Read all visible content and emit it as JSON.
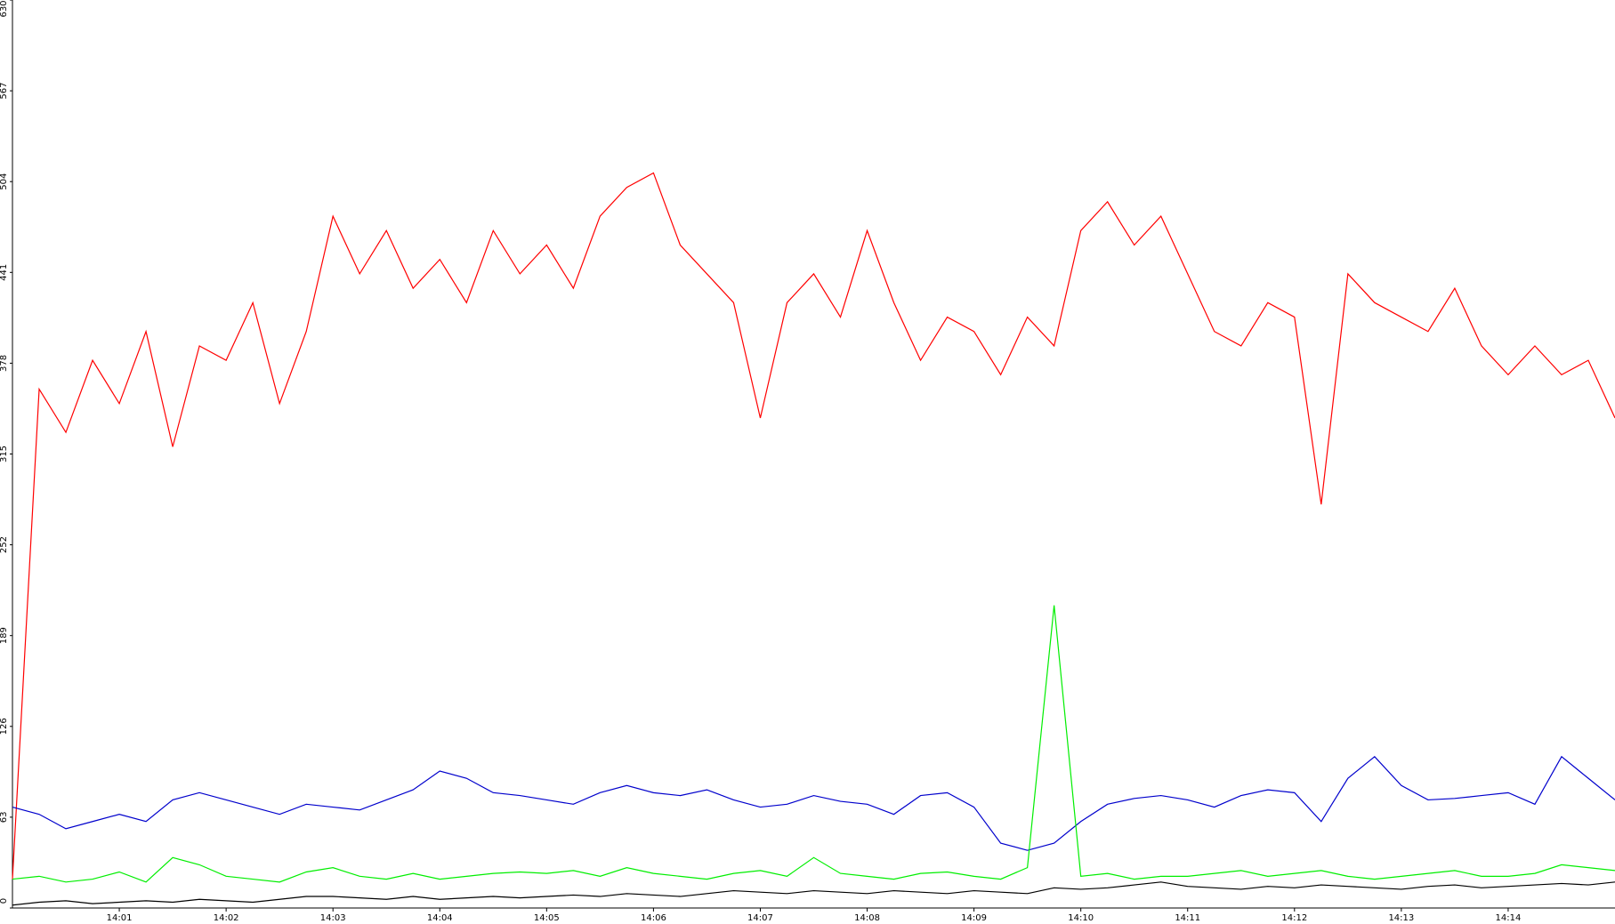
{
  "chart_data": {
    "type": "line",
    "categories": [
      null,
      null,
      null,
      null,
      "14:01",
      null,
      null,
      null,
      "14:02",
      null,
      null,
      null,
      "14:03",
      null,
      null,
      null,
      "14:04",
      null,
      null,
      null,
      "14:05",
      null,
      null,
      null,
      "14:06",
      null,
      null,
      null,
      "14:07",
      null,
      null,
      null,
      "14:08",
      null,
      null,
      null,
      "14:09",
      null,
      null,
      null,
      "14:10",
      null,
      null,
      null,
      "14:11",
      null,
      null,
      null,
      "14:12",
      null,
      null,
      null,
      "14:13",
      null,
      null,
      null,
      "14:14",
      null,
      null,
      null,
      null
    ],
    "series": [
      {
        "color": "#ff0000",
        "values": [
          20,
          360,
          330,
          380,
          350,
          400,
          320,
          390,
          380,
          420,
          350,
          400,
          480,
          440,
          470,
          430,
          450,
          420,
          470,
          440,
          460,
          430,
          480,
          500,
          510,
          460,
          440,
          420,
          340,
          420,
          440,
          410,
          470,
          420,
          380,
          410,
          400,
          370,
          410,
          390,
          470,
          490,
          460,
          480,
          440,
          400,
          390,
          420,
          410,
          280,
          440,
          420,
          410,
          400,
          430,
          390,
          370,
          390,
          370,
          380,
          340
        ]
      },
      {
        "color": "#0000cc",
        "values": [
          70,
          65,
          55,
          60,
          65,
          60,
          75,
          80,
          75,
          70,
          65,
          72,
          70,
          68,
          75,
          82,
          95,
          90,
          80,
          78,
          75,
          72,
          80,
          85,
          80,
          78,
          82,
          75,
          70,
          72,
          78,
          74,
          72,
          65,
          78,
          80,
          70,
          45,
          40,
          45,
          60,
          72,
          76,
          78,
          75,
          70,
          78,
          82,
          80,
          60,
          90,
          105,
          85,
          75,
          76,
          78,
          80,
          72,
          105,
          90,
          75
        ]
      },
      {
        "color": "#00ee00",
        "values": [
          20,
          22,
          18,
          20,
          25,
          18,
          35,
          30,
          22,
          20,
          18,
          25,
          28,
          22,
          20,
          24,
          20,
          22,
          24,
          25,
          24,
          26,
          22,
          28,
          24,
          22,
          20,
          24,
          26,
          22,
          35,
          24,
          22,
          20,
          24,
          25,
          22,
          20,
          28,
          210,
          22,
          24,
          20,
          22,
          22,
          24,
          26,
          22,
          24,
          26,
          22,
          20,
          22,
          24,
          26,
          22,
          22,
          24,
          30,
          28,
          26
        ]
      },
      {
        "color": "#000000",
        "values": [
          2,
          4,
          5,
          3,
          4,
          5,
          4,
          6,
          5,
          4,
          6,
          8,
          8,
          7,
          6,
          8,
          6,
          7,
          8,
          7,
          8,
          9,
          8,
          10,
          9,
          8,
          10,
          12,
          11,
          10,
          12,
          11,
          10,
          12,
          11,
          10,
          12,
          11,
          10,
          14,
          13,
          14,
          16,
          18,
          15,
          14,
          13,
          15,
          14,
          16,
          15,
          14,
          13,
          15,
          16,
          14,
          15,
          16,
          17,
          16,
          18
        ]
      }
    ],
    "ylim": [
      0,
      630
    ],
    "yticks": [
      0,
      63,
      126,
      189,
      252,
      315,
      378,
      441,
      504,
      567,
      630
    ]
  }
}
